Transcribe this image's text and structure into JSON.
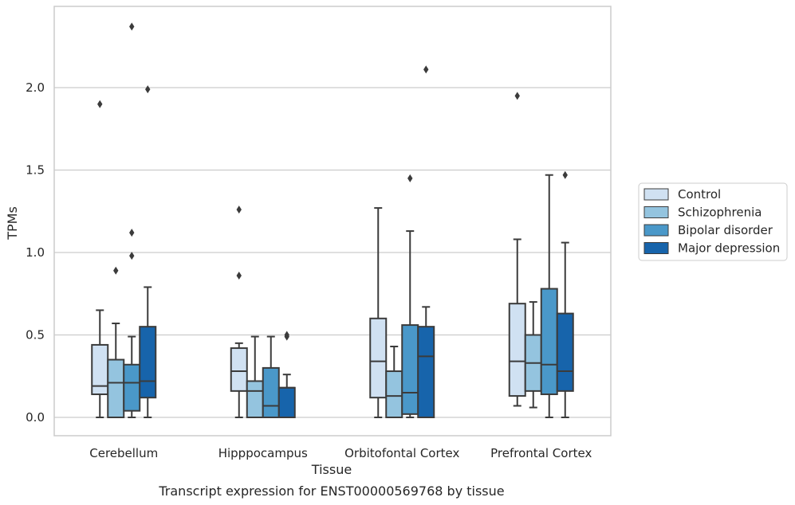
{
  "chart_data": {
    "type": "box",
    "xlabel": "Tissue",
    "ylabel": "TPMs",
    "caption": "Transcript expression for ENST00000569768 by tissue",
    "ylim": [
      -0.11,
      2.5
    ],
    "yticks": [
      0.0,
      0.5,
      1.0,
      1.5,
      2.0
    ],
    "ytick_labels": [
      "0.0",
      "0.5",
      "1.0",
      "1.5",
      "2.0"
    ],
    "grid": "horizontal",
    "legend_position": "right",
    "categories": [
      "Cerebellum",
      "Hipppocampus",
      "Orbitofontal Cortex",
      "Prefrontal Cortex"
    ],
    "series": [
      {
        "name": "Control",
        "color": "#d0e1f2",
        "boxes": [
          {
            "low": 0.0,
            "q1": 0.14,
            "median": 0.19,
            "q3": 0.44,
            "high": 0.65,
            "outliers": [
              1.9
            ]
          },
          {
            "low": 0.0,
            "q1": 0.16,
            "median": 0.28,
            "q3": 0.42,
            "high": 0.45,
            "outliers": [
              0.86,
              1.26
            ]
          },
          {
            "low": 0.0,
            "q1": 0.12,
            "median": 0.34,
            "q3": 0.6,
            "high": 1.27,
            "outliers": []
          },
          {
            "low": 0.07,
            "q1": 0.13,
            "median": 0.34,
            "q3": 0.69,
            "high": 1.08,
            "outliers": [
              1.95
            ]
          }
        ]
      },
      {
        "name": "Schizophrenia",
        "color": "#94c4df",
        "boxes": [
          {
            "low": 0.0,
            "q1": 0.0,
            "median": 0.21,
            "q3": 0.35,
            "high": 0.57,
            "outliers": [
              0.89
            ]
          },
          {
            "low": 0.0,
            "q1": 0.0,
            "median": 0.16,
            "q3": 0.22,
            "high": 0.49,
            "outliers": []
          },
          {
            "low": 0.0,
            "q1": 0.0,
            "median": 0.13,
            "q3": 0.28,
            "high": 0.43,
            "outliers": []
          },
          {
            "low": 0.06,
            "q1": 0.16,
            "median": 0.33,
            "q3": 0.5,
            "high": 0.7,
            "outliers": []
          }
        ]
      },
      {
        "name": "Bipolar disorder",
        "color": "#4a98c9",
        "boxes": [
          {
            "low": 0.0,
            "q1": 0.04,
            "median": 0.21,
            "q3": 0.32,
            "high": 0.49,
            "outliers": [
              0.98,
              1.12,
              2.37
            ]
          },
          {
            "low": 0.0,
            "q1": 0.0,
            "median": 0.07,
            "q3": 0.3,
            "high": 0.49,
            "outliers": []
          },
          {
            "low": 0.0,
            "q1": 0.02,
            "median": 0.15,
            "q3": 0.56,
            "high": 1.13,
            "outliers": [
              1.45
            ]
          },
          {
            "low": 0.0,
            "q1": 0.14,
            "median": 0.32,
            "q3": 0.78,
            "high": 1.47,
            "outliers": []
          }
        ]
      },
      {
        "name": "Major depression",
        "color": "#1764ab",
        "boxes": [
          {
            "low": 0.0,
            "q1": 0.12,
            "median": 0.22,
            "q3": 0.55,
            "high": 0.79,
            "outliers": [
              1.99
            ]
          },
          {
            "low": 0.0,
            "q1": 0.0,
            "median": 0.18,
            "q3": 0.18,
            "high": 0.26,
            "outliers": [
              0.49,
              0.5
            ]
          },
          {
            "low": 0.0,
            "q1": 0.0,
            "median": 0.37,
            "q3": 0.55,
            "high": 0.67,
            "outliers": [
              2.11
            ]
          },
          {
            "low": 0.0,
            "q1": 0.16,
            "median": 0.28,
            "q3": 0.63,
            "high": 1.06,
            "outliers": [
              1.47
            ]
          }
        ]
      }
    ]
  }
}
